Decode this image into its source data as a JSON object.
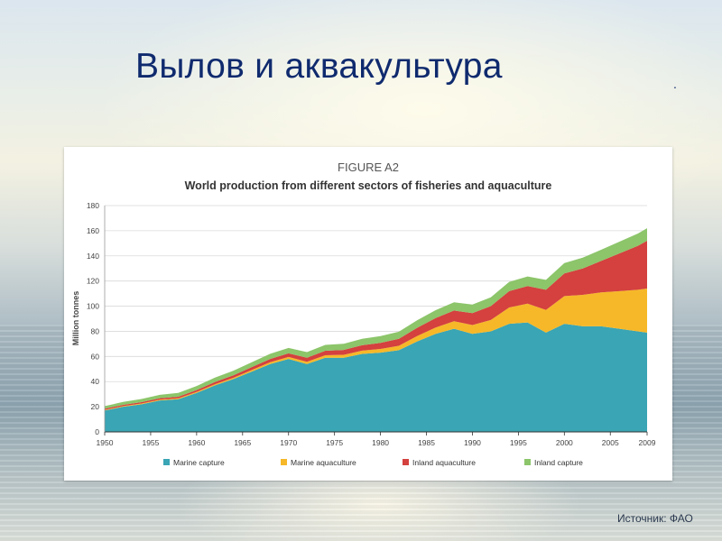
{
  "slide": {
    "title": "Вылов и аквакультура",
    "dot": ".",
    "source": "Источник: ФАО"
  },
  "chart_data": {
    "type": "area",
    "stacked": true,
    "figure_label": "FIGURE A2",
    "title": "World production from different sectors of fisheries and aquaculture",
    "ylabel": "Million tonnes",
    "xlabel": "",
    "xlim": [
      1950,
      2009
    ],
    "ylim": [
      0,
      180
    ],
    "x_ticks": [
      1950,
      1955,
      1960,
      1965,
      1970,
      1975,
      1980,
      1985,
      1990,
      1995,
      2000,
      2005,
      2009
    ],
    "y_ticks": [
      0,
      20,
      40,
      60,
      80,
      100,
      120,
      140,
      160,
      180
    ],
    "grid": true,
    "legend_position": "bottom",
    "x": [
      1950,
      1952,
      1954,
      1956,
      1958,
      1960,
      1962,
      1964,
      1966,
      1968,
      1970,
      1972,
      1974,
      1976,
      1978,
      1980,
      1982,
      1984,
      1986,
      1988,
      1990,
      1992,
      1994,
      1996,
      1998,
      2000,
      2002,
      2004,
      2006,
      2008,
      2009
    ],
    "series": [
      {
        "name": "Marine capture",
        "color": "#3aa5b4",
        "values": [
          17,
          20,
          22,
          25,
          26,
          31,
          37,
          42,
          48,
          54,
          58,
          54,
          59,
          59,
          62,
          63,
          65,
          72,
          78,
          82,
          78,
          80,
          86,
          87,
          79,
          86,
          84,
          84,
          82,
          80,
          79
        ]
      },
      {
        "name": "Marine aquaculture",
        "color": "#f6b829",
        "values": [
          0.5,
          0.5,
          0.6,
          0.6,
          0.7,
          0.8,
          0.9,
          1,
          1.2,
          1.4,
          1.6,
          1.8,
          2,
          2.3,
          2.6,
          3,
          3.5,
          4.3,
          5,
          6,
          7,
          9,
          13,
          15,
          18,
          22,
          25,
          27,
          30,
          33,
          35
        ]
      },
      {
        "name": "Inland aquaculture",
        "color": "#d4413e",
        "values": [
          1,
          1,
          1.1,
          1.2,
          1.3,
          1.5,
          1.8,
          2,
          2.3,
          2.6,
          2.9,
          3.2,
          3.5,
          3.9,
          4.3,
          4.8,
          5.5,
          6.5,
          7.5,
          8.5,
          9.5,
          11,
          13,
          14,
          16,
          18,
          21,
          25,
          30,
          35,
          38
        ]
      },
      {
        "name": "Inland capture",
        "color": "#8cc56a",
        "values": [
          2,
          2.3,
          2.5,
          2.7,
          3,
          3.2,
          3.5,
          3.7,
          3.9,
          4.1,
          4.3,
          4.5,
          4.7,
          4.9,
          5.1,
          5.4,
          5.7,
          6,
          6.3,
          6.6,
          6.8,
          7,
          7.3,
          7.6,
          7.9,
          8.3,
          8.6,
          8.9,
          9.3,
          9.8,
          10
        ]
      }
    ]
  }
}
